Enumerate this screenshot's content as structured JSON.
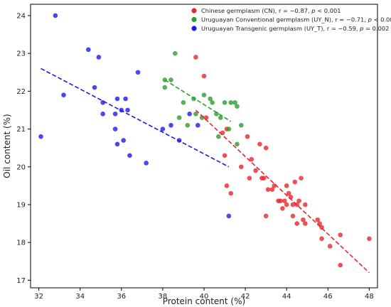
{
  "chart_data": {
    "type": "scatter",
    "title": "",
    "xlabel": "Protein content (%)",
    "ylabel": "Oil content (%)",
    "xlim": [
      31.6,
      48.4
    ],
    "ylim": [
      16.8,
      24.3
    ],
    "x_ticks": [
      32,
      34,
      36,
      38,
      40,
      42,
      44,
      46,
      48
    ],
    "y_ticks": [
      17,
      18,
      19,
      20,
      21,
      22,
      23,
      24
    ],
    "grid": false,
    "legend_position": "top-right",
    "series": [
      {
        "name": "Chinese germplasm (CN), r = −0.87, p < 0.001",
        "legend_parts": [
          "Chinese germplasm (CN), r = −0.87, ",
          "p",
          " < 0.001"
        ],
        "color": "#e8262b",
        "points": [
          [
            39.6,
            22.9
          ],
          [
            40.0,
            22.4
          ],
          [
            40.1,
            21.3
          ],
          [
            40.9,
            20.9
          ],
          [
            41.1,
            21.0
          ],
          [
            41.0,
            20.3
          ],
          [
            41.1,
            19.5
          ],
          [
            41.3,
            19.3
          ],
          [
            41.8,
            20.0
          ],
          [
            42.1,
            20.8
          ],
          [
            42.2,
            19.7
          ],
          [
            42.3,
            20.2
          ],
          [
            42.5,
            19.9
          ],
          [
            42.7,
            20.6
          ],
          [
            42.8,
            19.7
          ],
          [
            43.0,
            20.5
          ],
          [
            42.9,
            19.7
          ],
          [
            43.1,
            19.4
          ],
          [
            43.4,
            19.5
          ],
          [
            43.3,
            19.4
          ],
          [
            43.6,
            19.1
          ],
          [
            43.7,
            19.1
          ],
          [
            43.8,
            18.9
          ],
          [
            43.9,
            19.1
          ],
          [
            44.0,
            19.0
          ],
          [
            44.0,
            19.5
          ],
          [
            44.1,
            19.3
          ],
          [
            44.2,
            19.2
          ],
          [
            44.3,
            19.0
          ],
          [
            44.3,
            18.7
          ],
          [
            44.4,
            19.6
          ],
          [
            44.5,
            19.0
          ],
          [
            44.5,
            18.5
          ],
          [
            44.6,
            19.1
          ],
          [
            44.7,
            19.7
          ],
          [
            44.8,
            18.6
          ],
          [
            44.9,
            18.5
          ],
          [
            44.9,
            19.0
          ],
          [
            43.0,
            18.7
          ],
          [
            45.5,
            18.6
          ],
          [
            45.6,
            18.5
          ],
          [
            45.7,
            18.4
          ],
          [
            45.7,
            18.1
          ],
          [
            46.1,
            17.9
          ],
          [
            46.6,
            18.2
          ],
          [
            46.6,
            17.4
          ],
          [
            48.0,
            18.1
          ]
        ],
        "trend": [
          [
            39.6,
            21.5
          ],
          [
            48.0,
            17.2
          ]
        ]
      },
      {
        "name": "Uruguayan Conventional germplasm (UY_N), r = −0.71, p < 0.001",
        "legend_parts": [
          "Uruguayan Conventional germplasm (UY_N), r = −0.71, ",
          "p",
          " < 0.001"
        ],
        "color": "#2e9b31",
        "points": [
          [
            38.1,
            22.3
          ],
          [
            38.1,
            22.1
          ],
          [
            38.4,
            22.3
          ],
          [
            38.6,
            23.0
          ],
          [
            38.8,
            21.3
          ],
          [
            39.0,
            21.7
          ],
          [
            39.2,
            21.1
          ],
          [
            39.5,
            21.8
          ],
          [
            39.6,
            21.4
          ],
          [
            39.9,
            21.3
          ],
          [
            40.0,
            21.9
          ],
          [
            40.3,
            21.8
          ],
          [
            40.4,
            21.7
          ],
          [
            40.6,
            21.4
          ],
          [
            40.7,
            20.8
          ],
          [
            40.8,
            21.3
          ],
          [
            41.0,
            21.7
          ],
          [
            41.2,
            21.0
          ],
          [
            41.3,
            21.7
          ],
          [
            41.5,
            21.7
          ],
          [
            41.6,
            20.6
          ],
          [
            41.6,
            21.6
          ],
          [
            41.8,
            21.1
          ]
        ],
        "trend": [
          [
            38.1,
            22.3
          ],
          [
            41.3,
            21.2
          ]
        ]
      },
      {
        "name": "Uruguayan Transgenic germplasm (UY_T), r = −0.59, p = 0.002",
        "legend_parts": [
          "Uruguayan Transgenic germplasm (UY_T), r = −0.59, ",
          "p",
          " = 0.002"
        ],
        "color": "#1a1ae8",
        "points": [
          [
            32.1,
            20.8
          ],
          [
            32.8,
            24.0
          ],
          [
            33.2,
            21.9
          ],
          [
            34.4,
            23.1
          ],
          [
            34.7,
            22.1
          ],
          [
            34.9,
            22.9
          ],
          [
            35.1,
            21.7
          ],
          [
            35.1,
            21.4
          ],
          [
            35.7,
            21.4
          ],
          [
            35.7,
            21.0
          ],
          [
            35.8,
            21.8
          ],
          [
            35.8,
            20.6
          ],
          [
            36.0,
            21.5
          ],
          [
            36.1,
            20.7
          ],
          [
            36.2,
            21.8
          ],
          [
            36.3,
            21.5
          ],
          [
            36.4,
            20.3
          ],
          [
            36.8,
            22.5
          ],
          [
            37.2,
            20.1
          ],
          [
            38.0,
            21.0
          ],
          [
            38.4,
            21.1
          ],
          [
            38.8,
            20.7
          ],
          [
            39.3,
            21.4
          ],
          [
            39.7,
            21.1
          ],
          [
            41.2,
            18.7
          ]
        ],
        "trend": [
          [
            32.1,
            22.6
          ],
          [
            41.2,
            20.0
          ]
        ]
      }
    ]
  }
}
